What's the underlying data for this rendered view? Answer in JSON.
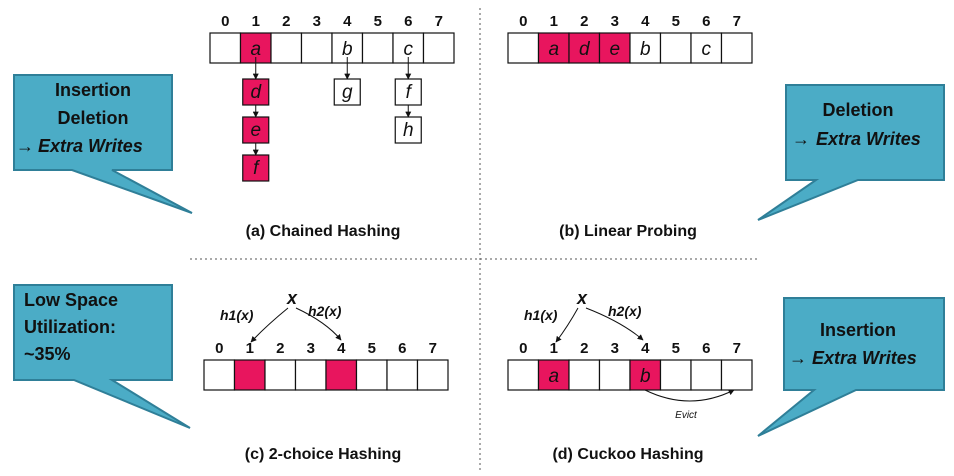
{
  "indices": [
    "0",
    "1",
    "2",
    "3",
    "4",
    "5",
    "6",
    "7"
  ],
  "colors": {
    "highlight": "#e8155e",
    "bubble_fill": "#4bacc6",
    "bubble_stroke": "#2f7f98"
  },
  "panel_a": {
    "caption": "(a) Chained Hashing",
    "slots": [
      "",
      "a",
      "",
      "",
      "b",
      "",
      "c",
      ""
    ],
    "chains": [
      {
        "slot": 1,
        "items": [
          "d",
          "e",
          "f"
        ],
        "highlight": true
      },
      {
        "slot": 4,
        "items": [
          "g"
        ],
        "highlight": false
      },
      {
        "slot": 6,
        "items": [
          "f",
          "h"
        ],
        "highlight": false
      }
    ],
    "bubble": {
      "line1": "Insertion",
      "line2": "Deletion",
      "arrow": "→",
      "line3": "Extra Writes"
    }
  },
  "panel_b": {
    "caption": "(b) Linear Probing",
    "slots": [
      "",
      "a",
      "d",
      "e",
      "b",
      "",
      "c",
      ""
    ],
    "highlight_slots": [
      1,
      2,
      3
    ],
    "bubble": {
      "line1": "Deletion",
      "arrow": "→",
      "line2": "Extra Writes"
    }
  },
  "panel_c": {
    "caption": "(c) 2-choice Hashing",
    "key": "x",
    "h1": "h1(x)",
    "h2": "h2(x)",
    "highlight_slots": [
      1,
      4
    ],
    "bubble": {
      "line1": "Low Space",
      "line2": "Utilization:",
      "line3": "~35%"
    }
  },
  "panel_d": {
    "caption": "(d) Cuckoo Hashing",
    "key": "x",
    "h1": "h1(x)",
    "h2": "h2(x)",
    "slots": [
      "",
      "a",
      "",
      "",
      "b",
      "",
      "",
      ""
    ],
    "highlight_slots": [
      1,
      4
    ],
    "evict_label": "Evict",
    "bubble": {
      "line1": "Insertion",
      "arrow": "→",
      "line2": "Extra Writes"
    }
  }
}
